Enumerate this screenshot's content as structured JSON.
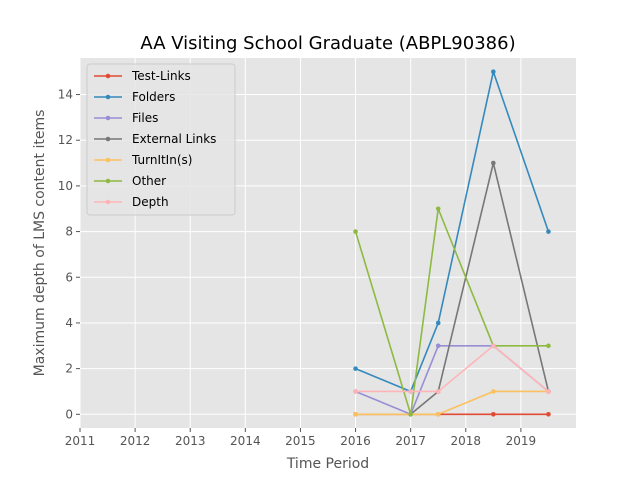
{
  "chart_data": {
    "type": "line",
    "title": "AA Visiting School Graduate (ABPL90386)",
    "xlabel": "Time Period",
    "ylabel": "Maximum depth of LMS content items",
    "xlim": [
      2011,
      2020
    ],
    "ylim": [
      -0.6,
      15.6
    ],
    "x_ticks": [
      2011,
      2012,
      2013,
      2014,
      2015,
      2016,
      2017,
      2018,
      2019
    ],
    "y_ticks": [
      0,
      2,
      4,
      6,
      8,
      10,
      12,
      14
    ],
    "grid": true,
    "legend_position": "upper-left",
    "series": [
      {
        "name": "Test-Links",
        "color": "#E24A33",
        "points": [
          [
            2016,
            0
          ],
          [
            2017,
            0
          ],
          [
            2017.5,
            0
          ],
          [
            2018.5,
            0
          ],
          [
            2019.5,
            0
          ]
        ]
      },
      {
        "name": "Folders",
        "color": "#348ABD",
        "points": [
          [
            2016,
            2
          ],
          [
            2017,
            1
          ],
          [
            2017.5,
            4
          ],
          [
            2018.5,
            15
          ],
          [
            2019.5,
            8
          ]
        ]
      },
      {
        "name": "Files",
        "color": "#988ED5",
        "points": [
          [
            2016,
            1
          ],
          [
            2017,
            0
          ],
          [
            2017.5,
            3
          ],
          [
            2018.5,
            3
          ],
          [
            2019.5,
            1
          ]
        ]
      },
      {
        "name": "External Links",
        "color": "#777777",
        "points": [
          [
            2017,
            0
          ],
          [
            2017.5,
            1
          ],
          [
            2018.5,
            11
          ],
          [
            2019.5,
            1
          ]
        ]
      },
      {
        "name": "TurnItIn(s)",
        "color": "#FBC15E",
        "points": [
          [
            2016,
            0
          ],
          [
            2017,
            0
          ],
          [
            2017.5,
            0
          ],
          [
            2018.5,
            1
          ],
          [
            2019.5,
            1
          ]
        ]
      },
      {
        "name": "Other",
        "color": "#8EBA42",
        "points": [
          [
            2016,
            8
          ],
          [
            2017,
            0
          ],
          [
            2017.5,
            9
          ],
          [
            2018.5,
            3
          ],
          [
            2019.5,
            3
          ]
        ]
      },
      {
        "name": "Depth",
        "color": "#FFB5B8",
        "points": [
          [
            2016,
            1
          ],
          [
            2017,
            1
          ],
          [
            2017.5,
            1
          ],
          [
            2018.5,
            3
          ],
          [
            2019.5,
            1
          ]
        ]
      }
    ]
  }
}
